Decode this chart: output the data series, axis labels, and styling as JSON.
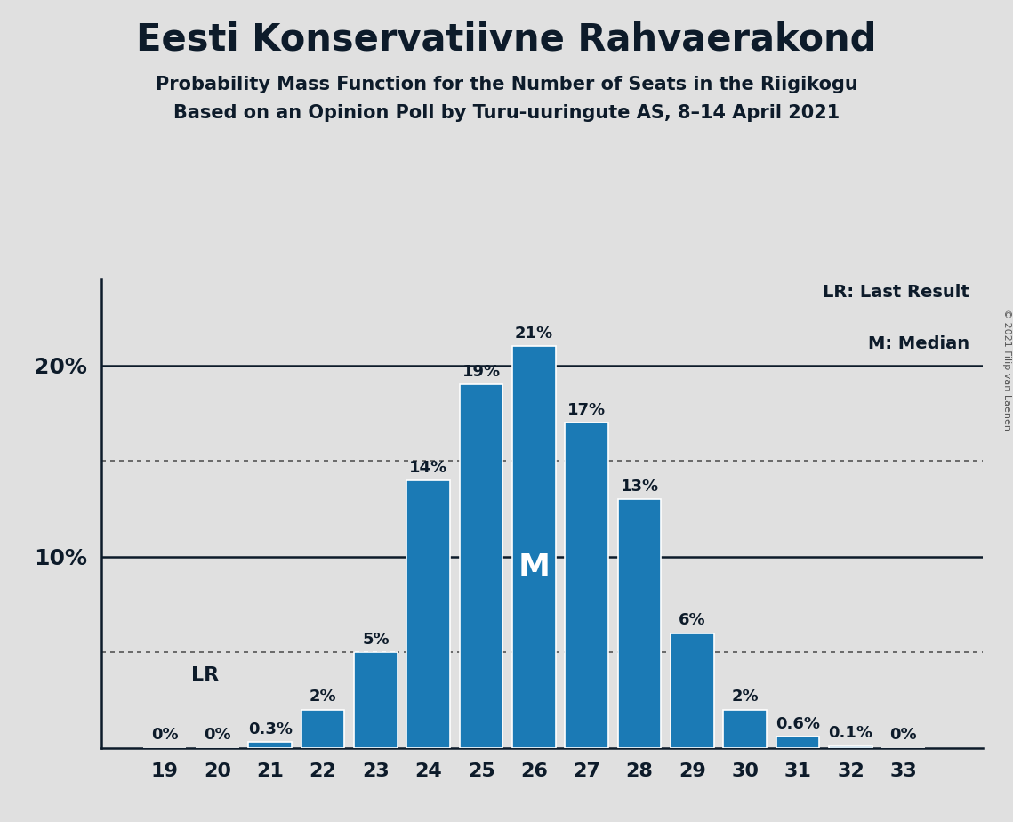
{
  "title": "Eesti Konservatiivne Rahvaerakond",
  "subtitle1": "Probability Mass Function for the Number of Seats in the Riigikogu",
  "subtitle2": "Based on an Opinion Poll by Turu-uuringute AS, 8–14 April 2021",
  "copyright": "© 2021 Filip van Laenen",
  "seats": [
    19,
    20,
    21,
    22,
    23,
    24,
    25,
    26,
    27,
    28,
    29,
    30,
    31,
    32,
    33
  ],
  "probabilities": [
    0.0,
    0.0,
    0.3,
    2.0,
    5.0,
    14.0,
    19.0,
    21.0,
    17.0,
    13.0,
    6.0,
    2.0,
    0.6,
    0.1,
    0.0
  ],
  "bar_labels": [
    "0%",
    "0%",
    "0.3%",
    "2%",
    "5%",
    "14%",
    "19%",
    "21%",
    "17%",
    "13%",
    "6%",
    "2%",
    "0.6%",
    "0.1%",
    "0%"
  ],
  "bar_color": "#1b7ab5",
  "background_color": "#e0e0e0",
  "median_seat": 26,
  "lr_seat": 19,
  "ytick_labels": [
    "10%",
    "20%"
  ],
  "ytick_values": [
    10,
    20
  ],
  "solid_lines": [
    10,
    20
  ],
  "dotted_lines": [
    5.0,
    15.0
  ],
  "legend_lr": "LR: Last Result",
  "legend_m": "M: Median",
  "median_label": "M",
  "title_color": "#0d1b2a",
  "label_color": "#0d1b2a"
}
